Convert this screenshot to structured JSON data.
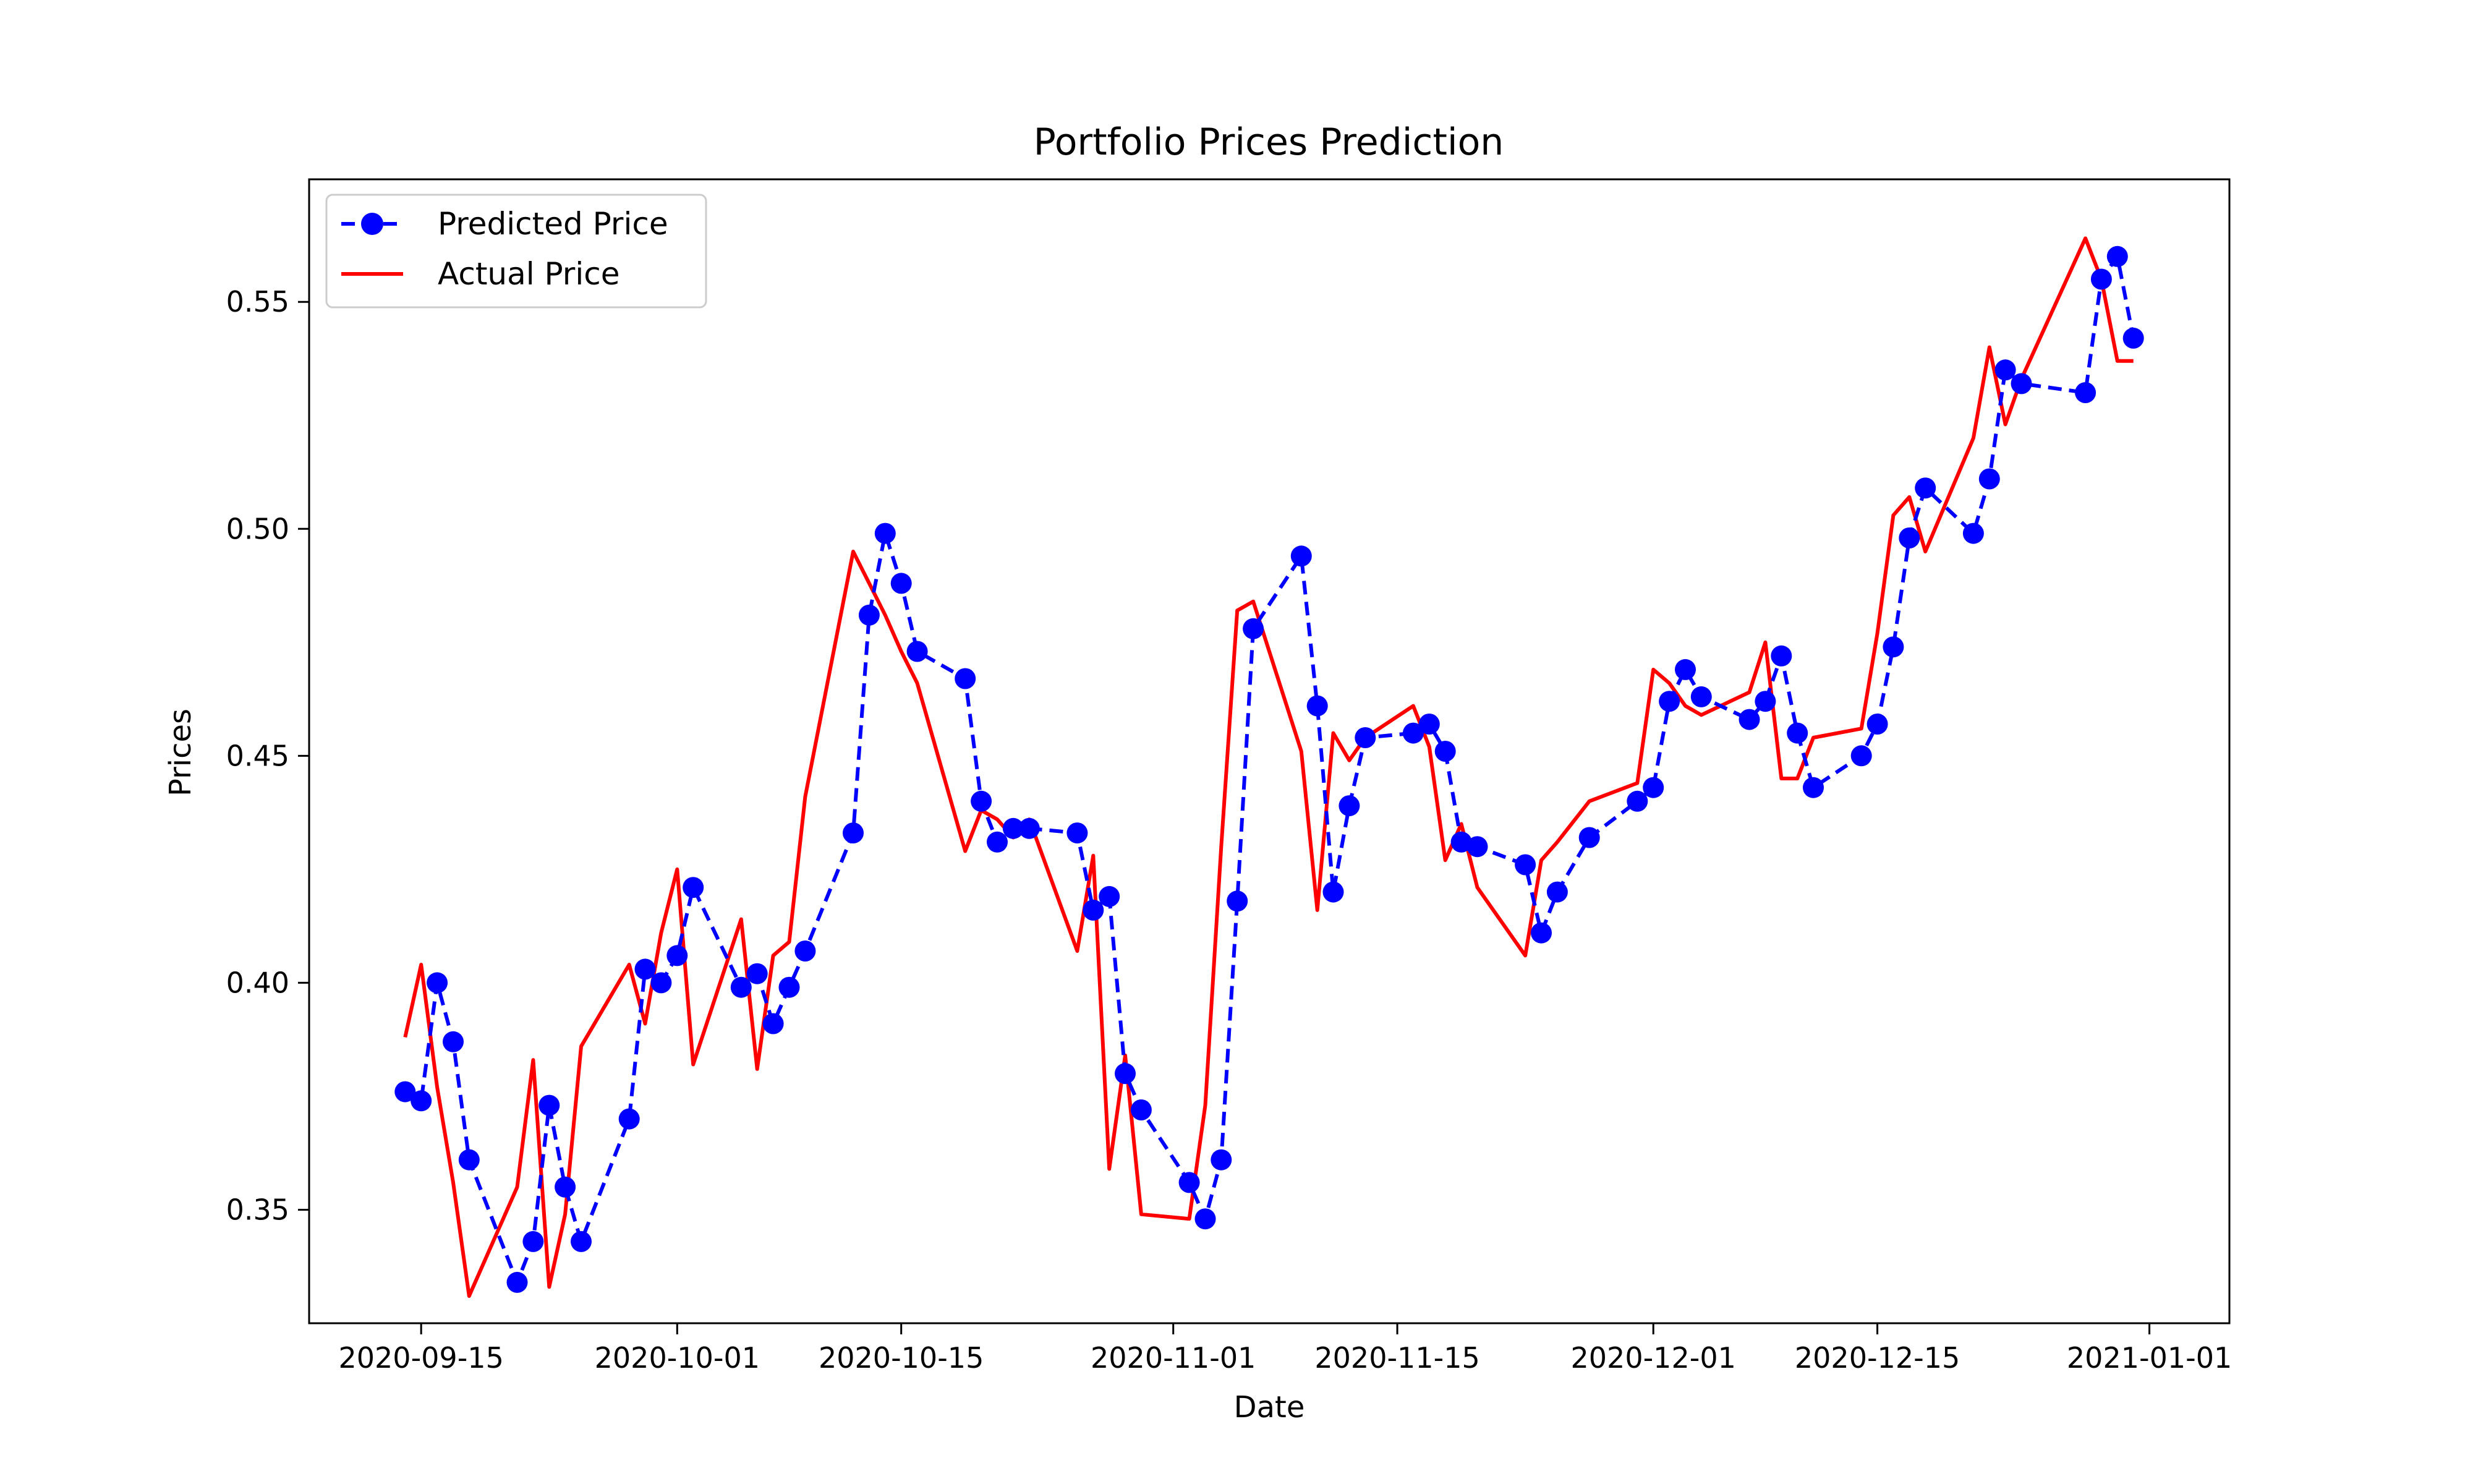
{
  "chart_data": {
    "type": "line",
    "title": "Portfolio Prices Prediction",
    "xlabel": "Date",
    "ylabel": "Prices",
    "xlim": [
      "2020-09-08",
      "2021-01-06"
    ],
    "ylim": [
      0.325,
      0.577
    ],
    "x_ticks": [
      "2020-09-15",
      "2020-10-01",
      "2020-10-15",
      "2020-11-01",
      "2020-11-15",
      "2020-12-01",
      "2020-12-15",
      "2021-01-01"
    ],
    "y_ticks": [
      0.35,
      0.4,
      0.45,
      0.5,
      0.55
    ],
    "y_tick_labels": [
      "0.35",
      "0.40",
      "0.45",
      "0.50",
      "0.55"
    ],
    "legend_position": "upper-left",
    "grid": false,
    "series": [
      {
        "name": "Predicted Price",
        "color": "#0000ff",
        "style": "dashed-with-circle-markers",
        "points": [
          [
            "2020-09-14",
            0.376
          ],
          [
            "2020-09-15",
            0.374
          ],
          [
            "2020-09-16",
            0.4
          ],
          [
            "2020-09-17",
            0.387
          ],
          [
            "2020-09-18",
            0.361
          ],
          [
            "2020-09-21",
            0.334
          ],
          [
            "2020-09-22",
            0.343
          ],
          [
            "2020-09-23",
            0.373
          ],
          [
            "2020-09-24",
            0.355
          ],
          [
            "2020-09-25",
            0.343
          ],
          [
            "2020-09-28",
            0.37
          ],
          [
            "2020-09-29",
            0.403
          ],
          [
            "2020-09-30",
            0.4
          ],
          [
            "2020-10-01",
            0.406
          ],
          [
            "2020-10-02",
            0.421
          ],
          [
            "2020-10-05",
            0.399
          ],
          [
            "2020-10-06",
            0.402
          ],
          [
            "2020-10-07",
            0.391
          ],
          [
            "2020-10-08",
            0.399
          ],
          [
            "2020-10-09",
            0.407
          ],
          [
            "2020-10-12",
            0.433
          ],
          [
            "2020-10-13",
            0.481
          ],
          [
            "2020-10-14",
            0.499
          ],
          [
            "2020-10-15",
            0.488
          ],
          [
            "2020-10-16",
            0.473
          ],
          [
            "2020-10-19",
            0.467
          ],
          [
            "2020-10-20",
            0.44
          ],
          [
            "2020-10-21",
            0.431
          ],
          [
            "2020-10-22",
            0.434
          ],
          [
            "2020-10-23",
            0.434
          ],
          [
            "2020-10-26",
            0.433
          ],
          [
            "2020-10-27",
            0.416
          ],
          [
            "2020-10-28",
            0.419
          ],
          [
            "2020-10-29",
            0.38
          ],
          [
            "2020-10-30",
            0.372
          ],
          [
            "2020-11-02",
            0.356
          ],
          [
            "2020-11-03",
            0.348
          ],
          [
            "2020-11-04",
            0.361
          ],
          [
            "2020-11-05",
            0.418
          ],
          [
            "2020-11-06",
            0.478
          ],
          [
            "2020-11-09",
            0.494
          ],
          [
            "2020-11-10",
            0.461
          ],
          [
            "2020-11-11",
            0.42
          ],
          [
            "2020-11-12",
            0.439
          ],
          [
            "2020-11-13",
            0.454
          ],
          [
            "2020-11-16",
            0.455
          ],
          [
            "2020-11-17",
            0.457
          ],
          [
            "2020-11-18",
            0.451
          ],
          [
            "2020-11-19",
            0.431
          ],
          [
            "2020-11-20",
            0.43
          ],
          [
            "2020-11-23",
            0.426
          ],
          [
            "2020-11-24",
            0.411
          ],
          [
            "2020-11-25",
            0.42
          ],
          [
            "2020-11-27",
            0.432
          ],
          [
            "2020-11-30",
            0.44
          ],
          [
            "2020-12-01",
            0.443
          ],
          [
            "2020-12-02",
            0.462
          ],
          [
            "2020-12-03",
            0.469
          ],
          [
            "2020-12-04",
            0.463
          ],
          [
            "2020-12-07",
            0.458
          ],
          [
            "2020-12-08",
            0.462
          ],
          [
            "2020-12-09",
            0.472
          ],
          [
            "2020-12-10",
            0.455
          ],
          [
            "2020-12-11",
            0.443
          ],
          [
            "2020-12-14",
            0.45
          ],
          [
            "2020-12-15",
            0.457
          ],
          [
            "2020-12-16",
            0.474
          ],
          [
            "2020-12-17",
            0.498
          ],
          [
            "2020-12-18",
            0.509
          ],
          [
            "2020-12-21",
            0.499
          ],
          [
            "2020-12-22",
            0.511
          ],
          [
            "2020-12-23",
            0.535
          ],
          [
            "2020-12-24",
            0.532
          ],
          [
            "2020-12-28",
            0.53
          ],
          [
            "2020-12-29",
            0.555
          ],
          [
            "2020-12-30",
            0.56
          ],
          [
            "2020-12-31",
            0.542
          ]
        ]
      },
      {
        "name": "Actual Price",
        "color": "#ff0000",
        "style": "solid",
        "points": [
          [
            "2020-09-14",
            0.388
          ],
          [
            "2020-09-15",
            0.404
          ],
          [
            "2020-09-16",
            0.377
          ],
          [
            "2020-09-17",
            0.356
          ],
          [
            "2020-09-18",
            0.331
          ],
          [
            "2020-09-21",
            0.355
          ],
          [
            "2020-09-22",
            0.383
          ],
          [
            "2020-09-23",
            0.333
          ],
          [
            "2020-09-24",
            0.349
          ],
          [
            "2020-09-25",
            0.386
          ],
          [
            "2020-09-28",
            0.404
          ],
          [
            "2020-09-29",
            0.391
          ],
          [
            "2020-09-30",
            0.411
          ],
          [
            "2020-10-01",
            0.425
          ],
          [
            "2020-10-02",
            0.382
          ],
          [
            "2020-10-05",
            0.414
          ],
          [
            "2020-10-06",
            0.381
          ],
          [
            "2020-10-07",
            0.406
          ],
          [
            "2020-10-08",
            0.409
          ],
          [
            "2020-10-09",
            0.441
          ],
          [
            "2020-10-12",
            0.495
          ],
          [
            "2020-10-13",
            0.488
          ],
          [
            "2020-10-14",
            0.481
          ],
          [
            "2020-10-15",
            0.473
          ],
          [
            "2020-10-16",
            0.466
          ],
          [
            "2020-10-19",
            0.429
          ],
          [
            "2020-10-20",
            0.438
          ],
          [
            "2020-10-21",
            0.436
          ],
          [
            "2020-10-22",
            0.432
          ],
          [
            "2020-10-23",
            0.436
          ],
          [
            "2020-10-26",
            0.407
          ],
          [
            "2020-10-27",
            0.428
          ],
          [
            "2020-10-28",
            0.359
          ],
          [
            "2020-10-29",
            0.384
          ],
          [
            "2020-10-30",
            0.349
          ],
          [
            "2020-11-02",
            0.348
          ],
          [
            "2020-11-03",
            0.373
          ],
          [
            "2020-11-04",
            0.43
          ],
          [
            "2020-11-05",
            0.482
          ],
          [
            "2020-11-06",
            0.484
          ],
          [
            "2020-11-09",
            0.451
          ],
          [
            "2020-11-10",
            0.416
          ],
          [
            "2020-11-11",
            0.455
          ],
          [
            "2020-11-12",
            0.449
          ],
          [
            "2020-11-13",
            0.454
          ],
          [
            "2020-11-16",
            0.461
          ],
          [
            "2020-11-17",
            0.452
          ],
          [
            "2020-11-18",
            0.427
          ],
          [
            "2020-11-19",
            0.435
          ],
          [
            "2020-11-20",
            0.421
          ],
          [
            "2020-11-23",
            0.406
          ],
          [
            "2020-11-24",
            0.427
          ],
          [
            "2020-11-25",
            0.431
          ],
          [
            "2020-11-27",
            0.44
          ],
          [
            "2020-11-30",
            0.444
          ],
          [
            "2020-12-01",
            0.469
          ],
          [
            "2020-12-02",
            0.466
          ],
          [
            "2020-12-03",
            0.461
          ],
          [
            "2020-12-04",
            0.459
          ],
          [
            "2020-12-07",
            0.464
          ],
          [
            "2020-12-08",
            0.475
          ],
          [
            "2020-12-09",
            0.445
          ],
          [
            "2020-12-10",
            0.445
          ],
          [
            "2020-12-11",
            0.454
          ],
          [
            "2020-12-14",
            0.456
          ],
          [
            "2020-12-15",
            0.477
          ],
          [
            "2020-12-16",
            0.503
          ],
          [
            "2020-12-17",
            0.507
          ],
          [
            "2020-12-18",
            0.495
          ],
          [
            "2020-12-21",
            0.52
          ],
          [
            "2020-12-22",
            0.54
          ],
          [
            "2020-12-23",
            0.523
          ],
          [
            "2020-12-24",
            0.533
          ],
          [
            "2020-12-28",
            0.564
          ],
          [
            "2020-12-29",
            0.555
          ],
          [
            "2020-12-30",
            0.537
          ],
          [
            "2020-12-31",
            0.537
          ]
        ]
      }
    ]
  }
}
